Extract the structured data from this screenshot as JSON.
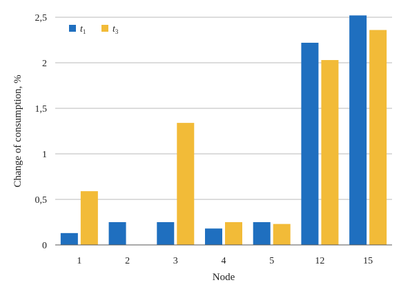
{
  "chart_data": {
    "type": "bar",
    "title": "",
    "xlabel": "Node",
    "ylabel": "Change of consumption, %",
    "categories": [
      "1",
      "2",
      "3",
      "4",
      "5",
      "12",
      "15"
    ],
    "series": [
      {
        "name": "t",
        "name_subscript": "1",
        "color": "#1f6fbf",
        "values": [
          0.13,
          0.25,
          0.25,
          0.18,
          0.25,
          2.22,
          2.52
        ]
      },
      {
        "name": "t",
        "name_subscript": "3",
        "color": "#f2bb38",
        "values": [
          0.59,
          0.0,
          1.34,
          0.25,
          0.23,
          2.03,
          2.36
        ]
      }
    ],
    "ylim": [
      0,
      2.5
    ],
    "yticks": [
      "0",
      "0,5",
      "1",
      "1,5",
      "2",
      "2,5"
    ],
    "ytick_values": [
      0,
      0.5,
      1,
      1.5,
      2,
      2.5
    ],
    "grid": true,
    "legend_position": "top-left"
  }
}
